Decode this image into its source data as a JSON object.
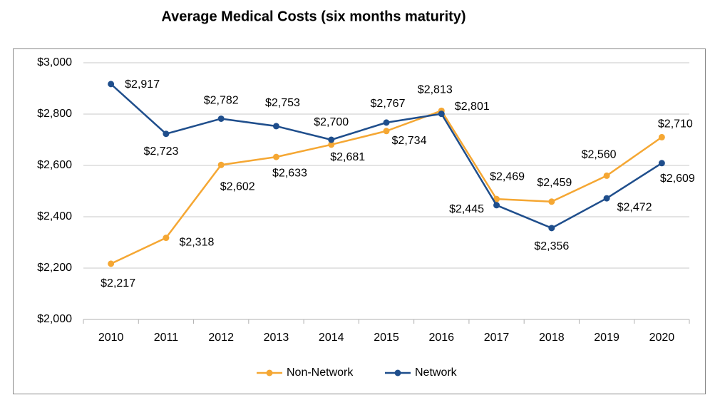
{
  "chart_data": {
    "type": "line",
    "title": "Average Medical Costs (six months maturity)",
    "categories": [
      "2010",
      "2011",
      "2012",
      "2013",
      "2014",
      "2015",
      "2016",
      "2017",
      "2018",
      "2019",
      "2020"
    ],
    "series": [
      {
        "name": "Non-Network",
        "color": "#f5a733",
        "values": [
          2217,
          2318,
          2602,
          2633,
          2681,
          2734,
          2813,
          2469,
          2459,
          2560,
          2710
        ],
        "value_labels": [
          "$2,217",
          "$2,318",
          "$2,602",
          "$2,633",
          "$2,681",
          "$2,734",
          "$2,813",
          "$2,469",
          "$2,459",
          "$2,560",
          "$2,710"
        ]
      },
      {
        "name": "Network",
        "color": "#1f4e8c",
        "values": [
          2917,
          2723,
          2782,
          2753,
          2700,
          2767,
          2801,
          2445,
          2356,
          2472,
          2609
        ],
        "value_labels": [
          "$2,917",
          "$2,723",
          "$2,782",
          "$2,753",
          "$2,700",
          "$2,767",
          "$2,801",
          "$2,445",
          "$2,356",
          "$2,472",
          "$2,609"
        ]
      }
    ],
    "ylim": [
      2000,
      3000
    ],
    "yticks": [
      {
        "value": 2000,
        "label": "$2,000"
      },
      {
        "value": 2200,
        "label": "$2,200"
      },
      {
        "value": 2400,
        "label": "$2,400"
      },
      {
        "value": 2600,
        "label": "$2,600"
      },
      {
        "value": 2800,
        "label": "$2,800"
      },
      {
        "value": 3000,
        "label": "$3,000"
      }
    ],
    "grid": true,
    "legend": "bottom"
  }
}
